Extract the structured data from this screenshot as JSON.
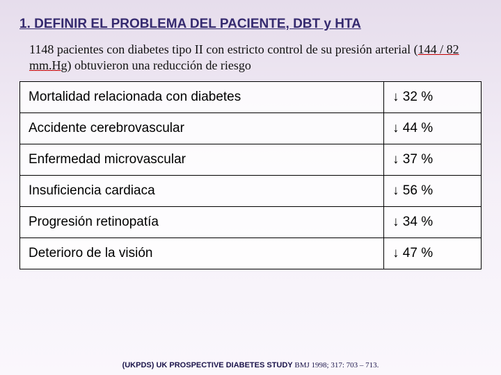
{
  "title": "1. DEFINIR EL PROBLEMA DEL PACIENTE, DBT y HTA",
  "intro_pre": "1148 pacientes con diabetes tipo II con estricto control de su presión arterial (",
  "intro_underlined": "144 / 82 mm.Hg",
  "intro_post": ") obtuvieron una reducción de riesgo",
  "table": {
    "type": "table",
    "columns": [
      "outcome",
      "reduction"
    ],
    "col_widths": [
      "524px",
      "140px"
    ],
    "cell_fontsize": 19,
    "border_color": "#000000",
    "background_color": "#ffffff",
    "rows": [
      {
        "outcome": "Mortalidad relacionada con diabetes",
        "reduction": "↓ 32 %"
      },
      {
        "outcome": "Accidente cerebrovascular",
        "reduction": "↓ 44 %"
      },
      {
        "outcome": "Enfermedad microvascular",
        "reduction": "↓ 37 %"
      },
      {
        "outcome": "Insuficiencia cardiaca",
        "reduction": "↓ 56 %"
      },
      {
        "outcome": "Progresión retinopatía",
        "reduction": "↓ 34 %"
      },
      {
        "outcome": "Deterioro de la visión",
        "reduction": "↓ 47 %"
      }
    ]
  },
  "citation_bold": "(UKPDS)  UK PROSPECTIVE DIABETES STUDY",
  "citation_src": " BMJ 1998; 317: 703 – 713.",
  "colors": {
    "title_color": "#352a6f",
    "bg_top": "#e6ddec",
    "bg_bottom": "#faf7fc",
    "underline_color": "#c00000"
  }
}
